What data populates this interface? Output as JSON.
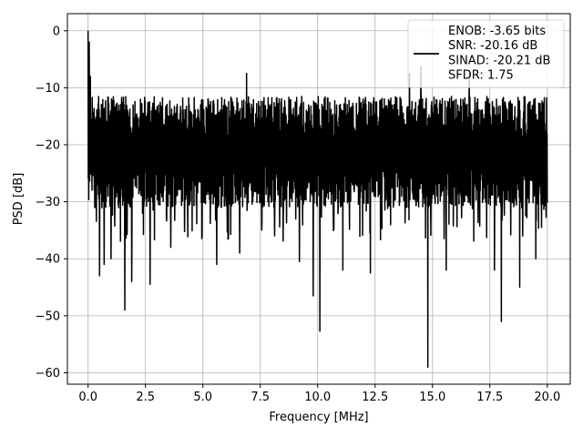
{
  "chart_data": {
    "type": "line",
    "title": "",
    "xlabel": "Frequency [MHz]",
    "ylabel": "PSD [dB]",
    "xlim": [
      -0.9,
      21.0
    ],
    "ylim": [
      -62,
      3
    ],
    "xticks": [
      0.0,
      2.5,
      5.0,
      7.5,
      10.0,
      12.5,
      15.0,
      17.5,
      20.0
    ],
    "xtick_labels": [
      "0.0",
      "2.5",
      "5.0",
      "7.5",
      "10.0",
      "12.5",
      "15.0",
      "17.5",
      "20.0"
    ],
    "yticks": [
      0,
      -10,
      -20,
      -30,
      -40,
      -50,
      -60
    ],
    "ytick_labels": [
      "0",
      "−10",
      "−20",
      "−30",
      "−40",
      "−50",
      "−60"
    ],
    "grid": true,
    "legend_position": "top-right",
    "legend_lines": [
      "ENOB: -3.65 bits",
      "SNR: -20.16 dB",
      "SINAD: -20.21 dB",
      "SFDR: 1.75"
    ],
    "series": [
      {
        "color": "#000000",
        "x_start": 0.0,
        "x_end": 20.0,
        "num_points": 2000,
        "typical_upper": -14,
        "typical_lower": -27,
        "peak": {
          "x": 0.0,
          "y": 0
        },
        "dips": [
          {
            "x": 0.5,
            "y": -43
          },
          {
            "x": 0.7,
            "y": -41
          },
          {
            "x": 1.0,
            "y": -40
          },
          {
            "x": 1.6,
            "y": -49
          },
          {
            "x": 1.9,
            "y": -44
          },
          {
            "x": 2.7,
            "y": -44.5
          },
          {
            "x": 3.6,
            "y": -38
          },
          {
            "x": 5.6,
            "y": -41
          },
          {
            "x": 6.6,
            "y": -39
          },
          {
            "x": 9.2,
            "y": -40.5
          },
          {
            "x": 9.8,
            "y": -46.5
          },
          {
            "x": 10.1,
            "y": -52.7
          },
          {
            "x": 11.1,
            "y": -42
          },
          {
            "x": 12.3,
            "y": -42.5
          },
          {
            "x": 14.8,
            "y": -59
          },
          {
            "x": 15.6,
            "y": -42
          },
          {
            "x": 17.7,
            "y": -42
          },
          {
            "x": 18.0,
            "y": -51
          },
          {
            "x": 18.8,
            "y": -45
          },
          {
            "x": 19.5,
            "y": -40
          }
        ],
        "spikes": [
          {
            "x": 0.05,
            "y": -2
          },
          {
            "x": 0.1,
            "y": -8
          },
          {
            "x": 6.9,
            "y": -7.5
          },
          {
            "x": 14.0,
            "y": -7.5
          },
          {
            "x": 14.5,
            "y": -6.3
          },
          {
            "x": 16.6,
            "y": -7.5
          }
        ]
      }
    ]
  }
}
